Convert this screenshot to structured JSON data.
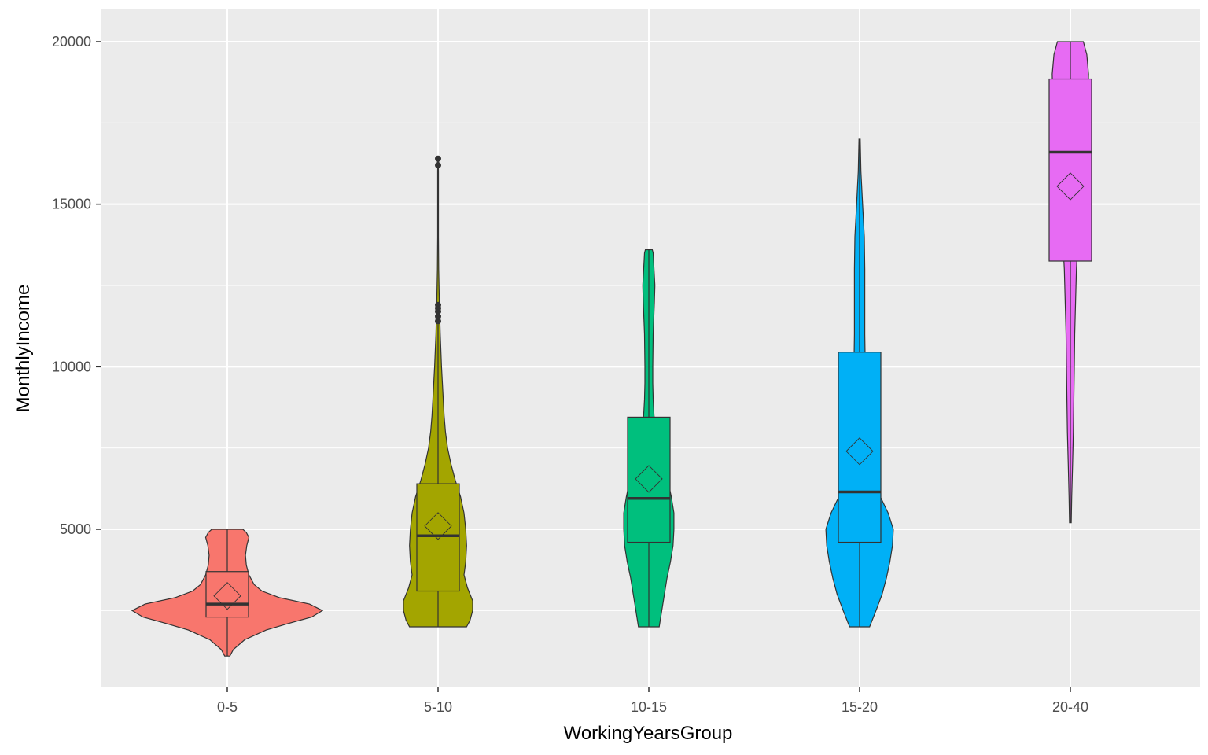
{
  "chart_data": {
    "type": "violin",
    "xlabel": "WorkingYearsGroup",
    "ylabel": "MonthlyIncome",
    "ylim": [
      0,
      20000
    ],
    "yticks": [
      5000,
      10000,
      15000,
      20000
    ],
    "grid": true,
    "legend": "none",
    "categories": [
      "0-5",
      "5-10",
      "10-15",
      "15-20",
      "20-40"
    ],
    "groups": [
      {
        "category": "0-5",
        "color": "#F8766D",
        "violin": [
          [
            1100,
            0.06
          ],
          [
            1300,
            0.14
          ],
          [
            1600,
            0.4
          ],
          [
            1900,
            0.9
          ],
          [
            2100,
            1.4
          ],
          [
            2300,
            1.95
          ],
          [
            2500,
            2.2
          ],
          [
            2700,
            1.9
          ],
          [
            2900,
            1.2
          ],
          [
            3100,
            0.8
          ],
          [
            3300,
            0.62
          ],
          [
            3600,
            0.5
          ],
          [
            3900,
            0.44
          ],
          [
            4200,
            0.42
          ],
          [
            4500,
            0.45
          ],
          [
            4750,
            0.5
          ],
          [
            4900,
            0.44
          ],
          [
            5000,
            0.36
          ]
        ],
        "box": {
          "q1": 2300,
          "median": 2700,
          "q3": 3700,
          "whisker_low": 1100,
          "whisker_high": 5000
        },
        "mean": 2950,
        "outliers": []
      },
      {
        "category": "5-10",
        "color": "#A3A500",
        "violin": [
          [
            2000,
            0.66
          ],
          [
            2200,
            0.74
          ],
          [
            2500,
            0.8
          ],
          [
            2800,
            0.8
          ],
          [
            3200,
            0.68
          ],
          [
            3600,
            0.6
          ],
          [
            4000,
            0.64
          ],
          [
            4500,
            0.66
          ],
          [
            5000,
            0.64
          ],
          [
            5500,
            0.6
          ],
          [
            6000,
            0.52
          ],
          [
            6500,
            0.4
          ],
          [
            7000,
            0.3
          ],
          [
            7500,
            0.22
          ],
          [
            8000,
            0.17
          ],
          [
            8500,
            0.14
          ],
          [
            9000,
            0.12
          ],
          [
            9500,
            0.1
          ],
          [
            10000,
            0.08
          ],
          [
            11000,
            0.05
          ],
          [
            12000,
            0.03
          ],
          [
            13000,
            0.015
          ],
          [
            14000,
            0.01
          ],
          [
            15000,
            0.01
          ],
          [
            16000,
            0.01
          ],
          [
            16400,
            0.005
          ]
        ],
        "box": {
          "q1": 3100,
          "median": 4800,
          "q3": 6400,
          "whisker_low": 2000,
          "whisker_high": 11300
        },
        "mean": 5100,
        "outliers": [
          11400,
          11550,
          11700,
          11800,
          11900,
          16200,
          16400
        ]
      },
      {
        "category": "10-15",
        "color": "#00BF7D",
        "violin": [
          [
            2000,
            0.24
          ],
          [
            2500,
            0.3
          ],
          [
            3000,
            0.36
          ],
          [
            3500,
            0.42
          ],
          [
            4000,
            0.5
          ],
          [
            4500,
            0.56
          ],
          [
            5000,
            0.58
          ],
          [
            5500,
            0.58
          ],
          [
            6000,
            0.52
          ],
          [
            6500,
            0.44
          ],
          [
            7000,
            0.34
          ],
          [
            7500,
            0.25
          ],
          [
            8000,
            0.17
          ],
          [
            8500,
            0.12
          ],
          [
            9000,
            0.1
          ],
          [
            9500,
            0.09
          ],
          [
            10000,
            0.09
          ],
          [
            11000,
            0.1
          ],
          [
            12000,
            0.13
          ],
          [
            12500,
            0.14
          ],
          [
            13000,
            0.12
          ],
          [
            13500,
            0.1
          ],
          [
            13600,
            0.08
          ]
        ],
        "box": {
          "q1": 4600,
          "median": 5950,
          "q3": 8450,
          "whisker_low": 2000,
          "whisker_high": 13600
        },
        "mean": 6550,
        "outliers": []
      },
      {
        "category": "15-20",
        "color": "#00B0F6",
        "violin": [
          [
            2000,
            0.23
          ],
          [
            2500,
            0.38
          ],
          [
            3000,
            0.52
          ],
          [
            3500,
            0.62
          ],
          [
            4000,
            0.7
          ],
          [
            4500,
            0.76
          ],
          [
            5000,
            0.78
          ],
          [
            5500,
            0.66
          ],
          [
            6000,
            0.48
          ],
          [
            6500,
            0.36
          ],
          [
            7000,
            0.28
          ],
          [
            8000,
            0.2
          ],
          [
            9000,
            0.16
          ],
          [
            10000,
            0.13
          ],
          [
            11000,
            0.12
          ],
          [
            12000,
            0.12
          ],
          [
            13000,
            0.12
          ],
          [
            14000,
            0.11
          ],
          [
            15000,
            0.07
          ],
          [
            16000,
            0.03
          ],
          [
            17000,
            0.015
          ]
        ],
        "box": {
          "q1": 4600,
          "median": 6150,
          "q3": 10450,
          "whisker_low": 2000,
          "whisker_high": 17000
        },
        "mean": 7400,
        "outliers": []
      },
      {
        "category": "20-40",
        "color": "#E76BF3",
        "violin": [
          [
            5200,
            0.02
          ],
          [
            6000,
            0.03
          ],
          [
            7000,
            0.05
          ],
          [
            8000,
            0.07
          ],
          [
            9000,
            0.08
          ],
          [
            10000,
            0.09
          ],
          [
            11000,
            0.1
          ],
          [
            12000,
            0.12
          ],
          [
            13000,
            0.14
          ],
          [
            14000,
            0.18
          ],
          [
            15000,
            0.22
          ],
          [
            16000,
            0.28
          ],
          [
            17000,
            0.34
          ],
          [
            18000,
            0.4
          ],
          [
            19000,
            0.42
          ],
          [
            19600,
            0.38
          ],
          [
            20000,
            0.3
          ]
        ],
        "box": {
          "q1": 13250,
          "median": 16600,
          "q3": 18850,
          "whisker_low": 5200,
          "whisker_high": 20000
        },
        "mean": 15550,
        "outliers": []
      }
    ]
  }
}
